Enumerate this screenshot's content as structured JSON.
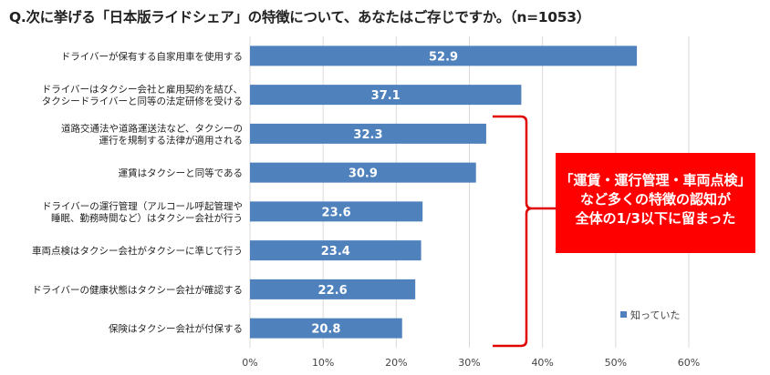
{
  "chart_data": {
    "type": "bar",
    "orientation": "horizontal",
    "title": "Q.次に挙げる「日本版ライドシェア」の特徴について、あなたはご存じですか。（n=1053）",
    "categories": [
      [
        "ドライバーが保有する自家用車を使用する"
      ],
      [
        "ドライバーはタクシー会社と雇用契約を結び、",
        "タクシードライバーと同等の法定研修を受ける"
      ],
      [
        "道路交通法や道路運送法など、タクシーの",
        "運行を規制する法律が適用される"
      ],
      [
        "運賃はタクシーと同等である"
      ],
      [
        "ドライバーの運行管理（アルコール呼起管理や",
        "睡眠、勤務時間など）はタクシー会社が行う"
      ],
      [
        "車両点検はタクシー会社がタクシーに準じて行う"
      ],
      [
        "ドライバーの健康状態はタクシー会社が確認する"
      ],
      [
        "保険はタクシー会社が付保する"
      ]
    ],
    "series": [
      {
        "name": "知っていた",
        "values": [
          52.9,
          37.1,
          32.3,
          30.9,
          23.6,
          23.4,
          22.6,
          20.8
        ],
        "color": "#4F81BD"
      }
    ],
    "value_labels": [
      "52.9",
      "37.1",
      "32.3",
      "30.9",
      "23.6",
      "23.4",
      "22.6",
      "20.8"
    ],
    "xlim": [
      0,
      60
    ],
    "x_ticks": [
      "0%",
      "10%",
      "20%",
      "30%",
      "40%",
      "50%",
      "60%"
    ],
    "grid": true,
    "legend": "bottom-right",
    "annotation": {
      "lines": [
        "「運賃・運行管理・車両点検」",
        "など多くの特徴の認知が",
        "全体の1/3以下に留まった"
      ],
      "background": "#FF0000",
      "bracket_color": "#E00000"
    }
  }
}
